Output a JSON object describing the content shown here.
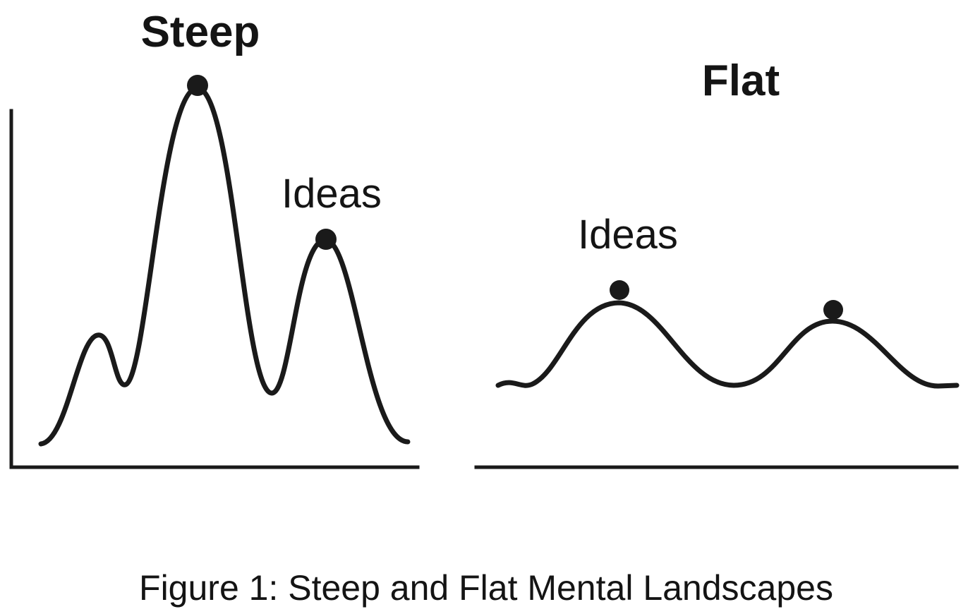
{
  "steep_panel": {
    "title": "Steep",
    "peak_label": "Ideas"
  },
  "flat_panel": {
    "title": "Flat",
    "peak_label": "Ideas"
  },
  "caption": "Figure 1: Steep and Flat Mental Landscapes",
  "colors": {
    "ink": "#1a1a1a",
    "background": "#ffffff"
  }
}
